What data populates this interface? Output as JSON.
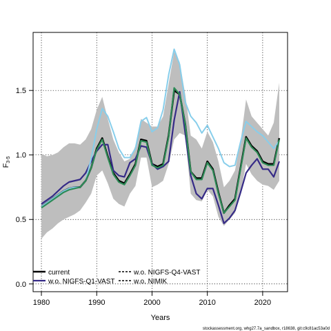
{
  "colors": {
    "band": "#BEBEBE",
    "current": "#000000",
    "q1": "#352A87",
    "nimik": "#2E8B57",
    "q4": "#87CEEB"
  },
  "footer": "stockassessment.org, whg27.7a_sandbox, r18638, git:c9c81ac53a0d",
  "chart_data": {
    "type": "line",
    "title": "",
    "xlabel": "Years",
    "ylabel": "F",
    "ylabel_subscript": "3-5",
    "xlim": [
      1978.5,
      2024.5
    ],
    "ylim": [
      -0.06,
      1.95
    ],
    "xticks": [
      "1980",
      "1990",
      "2000",
      "2010",
      "2020"
    ],
    "yticks": [
      "0.0",
      "0.5",
      "1.0",
      "1.5"
    ],
    "xtick_values": [
      1980,
      1990,
      2000,
      2010,
      2020
    ],
    "ytick_values": [
      0.0,
      0.5,
      1.0,
      1.5
    ],
    "grid": true,
    "legend_placement": "bottom-left",
    "x": [
      1980,
      1981,
      1982,
      1983,
      1984,
      1985,
      1986,
      1987,
      1988,
      1989,
      1990,
      1991,
      1992,
      1993,
      1994,
      1995,
      1996,
      1997,
      1998,
      1999,
      2000,
      2001,
      2002,
      2003,
      2004,
      2005,
      2006,
      2007,
      2008,
      2009,
      2010,
      2011,
      2012,
      2013,
      2014,
      2015,
      2016,
      2017,
      2018,
      2019,
      2020,
      2021,
      2022,
      2023
    ],
    "band": {
      "upper": [
        1.01,
        0.99,
        1.0,
        1.02,
        1.06,
        1.09,
        1.09,
        1.08,
        1.12,
        1.2,
        1.35,
        1.45,
        1.28,
        1.12,
        1.02,
        0.95,
        0.97,
        1.07,
        1.28,
        1.25,
        1.22,
        1.22,
        1.3,
        1.55,
        1.8,
        1.72,
        1.47,
        1.15,
        1.12,
        1.05,
        1.18,
        1.1,
        0.95,
        0.75,
        0.8,
        0.88,
        1.1,
        1.43,
        1.3,
        1.25,
        1.2,
        1.15,
        1.25,
        1.56
      ],
      "lower": [
        0.35,
        0.4,
        0.43,
        0.47,
        0.5,
        0.52,
        0.54,
        0.57,
        0.63,
        0.7,
        0.84,
        0.88,
        0.78,
        0.66,
        0.62,
        0.6,
        0.7,
        0.76,
        0.98,
        0.98,
        0.75,
        0.77,
        0.8,
        0.93,
        1.12,
        1.17,
        1.15,
        0.7,
        0.65,
        0.64,
        0.73,
        0.68,
        0.52,
        0.45,
        0.5,
        0.55,
        0.7,
        0.93,
        0.85,
        0.8,
        0.77,
        0.76,
        0.73,
        0.8
      ]
    },
    "series": [
      {
        "name": "current",
        "values": [
          0.6,
          0.63,
          0.66,
          0.69,
          0.72,
          0.74,
          0.75,
          0.75,
          0.8,
          0.9,
          1.05,
          1.13,
          0.99,
          0.86,
          0.8,
          0.78,
          0.85,
          0.93,
          1.12,
          1.11,
          0.93,
          0.91,
          0.93,
          1.15,
          1.5,
          1.47,
          1.24,
          0.87,
          0.82,
          0.82,
          0.95,
          0.89,
          0.71,
          0.55,
          0.61,
          0.66,
          0.9,
          1.14,
          1.07,
          1.03,
          0.95,
          0.93,
          0.93,
          1.13
        ]
      },
      {
        "name": "w.o. NIGFS-Q1-VAST",
        "values": [
          0.62,
          0.65,
          0.68,
          0.72,
          0.76,
          0.79,
          0.8,
          0.81,
          0.86,
          0.95,
          1.03,
          1.08,
          1.08,
          0.88,
          0.84,
          0.83,
          0.94,
          0.97,
          1.07,
          1.06,
          0.93,
          0.89,
          0.91,
          0.95,
          1.27,
          1.49,
          1.17,
          0.84,
          0.7,
          0.66,
          0.74,
          0.74,
          0.61,
          0.47,
          0.51,
          0.57,
          0.71,
          0.86,
          0.92,
          0.97,
          0.89,
          0.89,
          0.83,
          0.95
        ]
      },
      {
        "name": "w.o. NIGFS-Q4-VAST",
        "values": [
          0.6,
          0.63,
          0.66,
          0.69,
          0.72,
          0.74,
          0.75,
          0.75,
          0.8,
          0.97,
          1.2,
          1.36,
          1.3,
          1.18,
          1.05,
          0.98,
          0.98,
          1.05,
          1.26,
          1.29,
          1.18,
          1.21,
          1.35,
          1.62,
          1.82,
          1.7,
          1.41,
          1.3,
          1.25,
          1.17,
          1.23,
          1.14,
          1.05,
          0.94,
          0.91,
          0.92,
          1.1,
          1.26,
          1.22,
          1.18,
          1.15,
          1.1,
          1.05,
          1.11
        ]
      },
      {
        "name": "w.o. NIMIK",
        "values": [
          0.59,
          0.62,
          0.65,
          0.68,
          0.71,
          0.73,
          0.74,
          0.75,
          0.8,
          0.9,
          1.04,
          1.12,
          0.98,
          0.85,
          0.79,
          0.77,
          0.84,
          0.92,
          1.11,
          1.1,
          0.92,
          0.9,
          0.92,
          1.14,
          1.52,
          1.47,
          1.24,
          0.87,
          0.81,
          0.81,
          0.94,
          0.88,
          0.7,
          0.55,
          0.6,
          0.65,
          0.89,
          1.13,
          1.06,
          1.02,
          0.94,
          0.92,
          0.92,
          1.12
        ]
      }
    ],
    "legend": [
      "current",
      "w.o. NIGFS-Q1-VAST",
      "w.o. NIGFS-Q4-VAST",
      "w.o. NIMIK"
    ]
  }
}
